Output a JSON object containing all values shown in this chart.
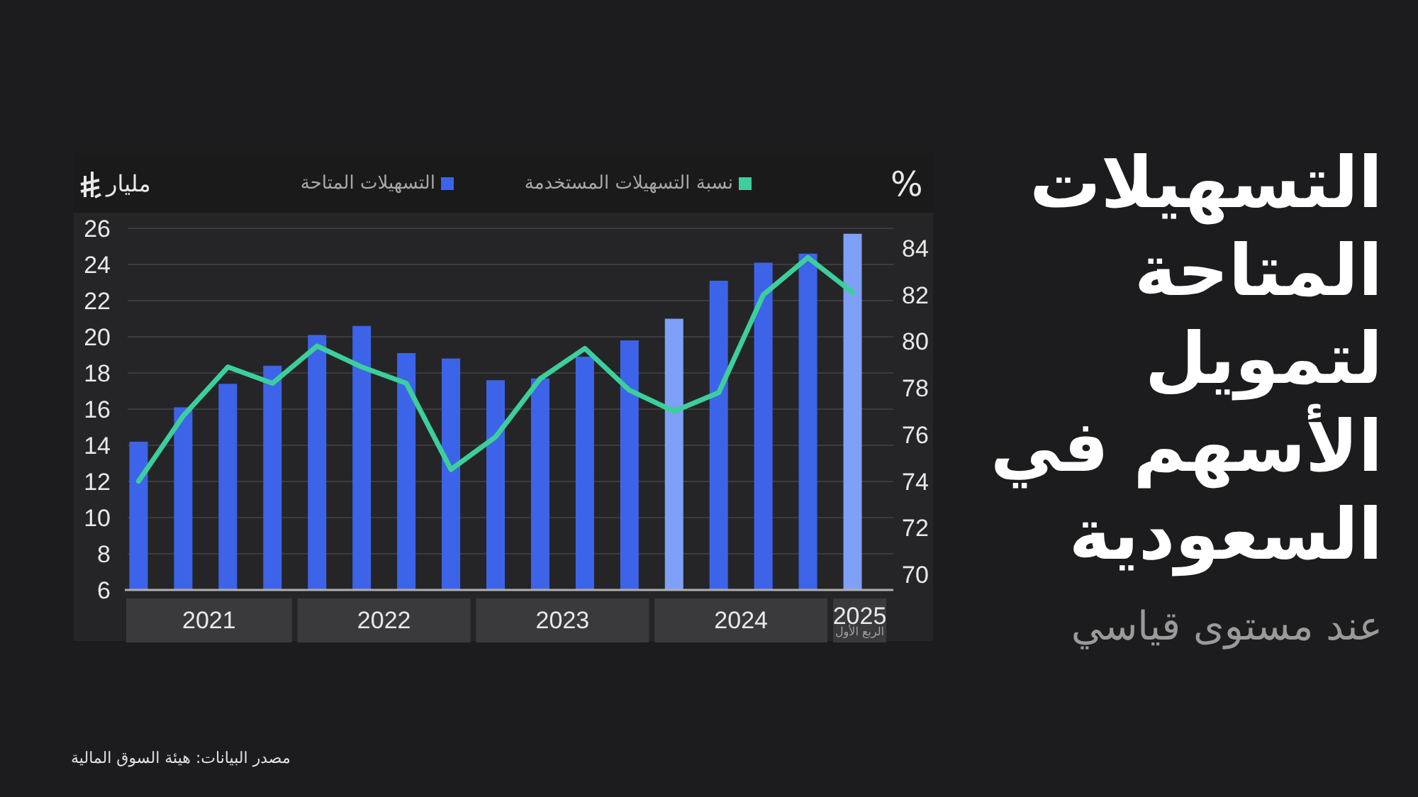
{
  "chart_data": {
    "type": "bar",
    "title": "التسهيلات المتاحة لتمويل الأسهم في السعودية",
    "subtitle": "عند مستوى قياسي",
    "ylabel": "مليار",
    "y2label": "%",
    "categories": [
      null,
      null,
      null,
      null,
      null,
      null,
      null,
      null,
      null,
      null,
      null,
      null,
      null,
      null,
      null,
      null,
      null
    ],
    "series": [
      {
        "name": "التسهيلات المتاحة",
        "color": "#3d64e8",
        "colors": [
          "#3d64e8",
          "#3d64e8",
          "#3d64e8",
          "#3d64e8",
          "#3d64e8",
          "#3d64e8",
          "#3d64e8",
          "#3d64e8",
          "#3d64e8",
          "#3d64e8",
          "#3d64e8",
          "#3d64e8",
          "#7fa0f7",
          "#3d64e8",
          "#3d64e8",
          "#3d64e8",
          "#7fa0f7"
        ],
        "values": [
          14.2,
          16.1,
          17.4,
          18.4,
          20.1,
          20.6,
          19.1,
          18.8,
          17.6,
          17.7,
          18.9,
          19.8,
          21.0,
          23.1,
          24.1,
          24.6,
          25.7
        ]
      },
      {
        "name": "نسبة التسهيلات المستخدمة",
        "type": "line",
        "axis": "y2",
        "color": "#3ccf9b",
        "values": [
          74.0,
          76.8,
          78.9,
          78.2,
          79.8,
          78.9,
          78.2,
          74.5,
          75.9,
          78.4,
          79.7,
          77.9,
          77.0,
          77.8,
          82.0,
          83.6,
          82.1
        ]
      }
    ],
    "ylim": [
      6,
      26
    ],
    "yticks": [
      6,
      8,
      10,
      12,
      14,
      16,
      18,
      20,
      22,
      24,
      26
    ],
    "y2lim": [
      70,
      84
    ],
    "y2ticks": [
      70,
      72,
      74,
      76,
      78,
      80,
      82,
      84
    ],
    "grid": "y",
    "legend": "top",
    "annotations": [
      "2021",
      "2022",
      "2023",
      "2024",
      "2025",
      "الربع الأول",
      "مصدر البيانات: هيئة السوق المالية"
    ]
  }
}
